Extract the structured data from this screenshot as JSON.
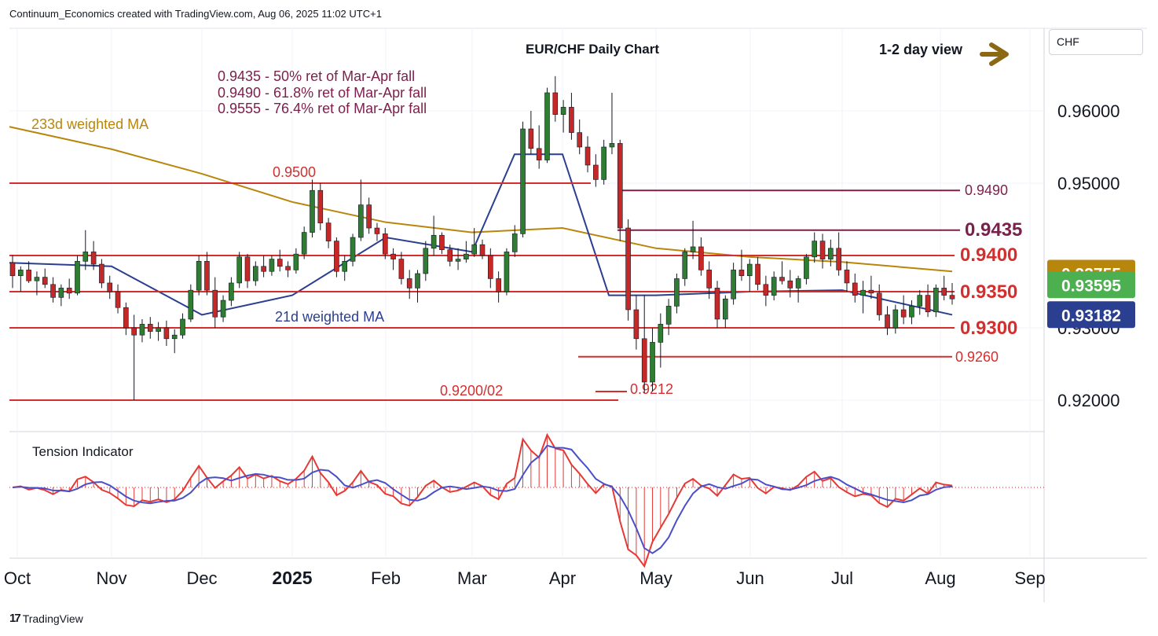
{
  "header": {
    "attribution": "Continuum_Economics created with TradingView.com, Aug 06, 2025 11:02 UTC+1"
  },
  "currency_label": "CHF",
  "footer": {
    "brand": "TradingView",
    "logo_text": "17"
  },
  "colors": {
    "up_candle": "#2e7d32",
    "down_candle": "#c62828",
    "level_line": "#d32f2f",
    "fib_line": "#7b1f4b",
    "ma233": "#b8860b",
    "ma21": "#2a3f8f",
    "tension_fast": "#e53935",
    "tension_slow": "#4a4fc8",
    "arrow": "#8b6914"
  },
  "chart_data": [
    {
      "type": "candlestick",
      "title": "EUR/CHF Daily Chart",
      "view_note": "1-2 day view",
      "view_arrow_icon": "right-arrow-icon",
      "x_tick_labels": [
        "Oct",
        "Nov",
        "Dec",
        "2025",
        "Feb",
        "Mar",
        "Apr",
        "May",
        "Jun",
        "Jul",
        "Aug",
        "Sep"
      ],
      "y_tick_labels": [
        "0.96000",
        "0.95000",
        "0.93000",
        "0.92000"
      ],
      "ylim": [
        0.9185,
        0.9675
      ],
      "grid": true,
      "notes": [
        "0.9435 - 50% ret of Mar-Apr fall",
        "0.9490 - 61.8% ret of Mar-Apr fall",
        "0.9555 - 76.4% ret of Mar-Apr fall"
      ],
      "levels": [
        {
          "value": 0.95,
          "label": "0.9500",
          "style": "resistance"
        },
        {
          "value": 0.949,
          "label": "0.9490",
          "style": "fib"
        },
        {
          "value": 0.9435,
          "label": "0.9435",
          "style": "fib"
        },
        {
          "value": 0.94,
          "label": "0.9400",
          "style": "level"
        },
        {
          "value": 0.935,
          "label": "0.9350",
          "style": "level"
        },
        {
          "value": 0.93,
          "label": "0.9300",
          "style": "level"
        },
        {
          "value": 0.926,
          "label": "0.9260",
          "style": "support"
        },
        {
          "value": 0.9212,
          "label": "0.9212",
          "style": "support"
        },
        {
          "value": 0.92,
          "label": "0.9200/02",
          "style": "support"
        }
      ],
      "price_badges": [
        {
          "value": 0.93755,
          "label": "0.93755",
          "color": "#b8860b"
        },
        {
          "value": 0.93595,
          "label": "0.93595",
          "color": "#4caf50"
        },
        {
          "value": 0.93182,
          "label": "0.93182",
          "color": "#2a3f8f"
        }
      ],
      "series": [
        {
          "name": "233d weighted MA",
          "points": [
            [
              "Oct",
              0.9578
            ],
            [
              "Nov",
              0.9547
            ],
            [
              "Dec",
              0.9513
            ],
            [
              "2025",
              0.9474
            ],
            [
              "Feb",
              0.9446
            ],
            [
              "Mar",
              0.9432
            ],
            [
              "Apr",
              0.9438
            ],
            [
              "May",
              0.941
            ],
            [
              "Jun",
              0.9398
            ],
            [
              "Jul",
              0.9391
            ],
            [
              "Aug",
              0.9378
            ]
          ]
        },
        {
          "name": "21d weighted MA",
          "points": [
            [
              "Oct",
              0.939
            ],
            [
              "Nov",
              0.9385
            ],
            [
              "Dec",
              0.9318
            ],
            [
              "2025",
              0.9345
            ],
            [
              "Feb",
              0.9425
            ],
            [
              "Mar",
              0.9405
            ],
            [
              "Mar 15",
              0.954
            ],
            [
              "Apr",
              0.954
            ],
            [
              "Apr 20",
              0.9345
            ],
            [
              "May",
              0.9345
            ],
            [
              "Jun",
              0.935
            ],
            [
              "Jul",
              0.9352
            ],
            [
              "Aug",
              0.9318
            ]
          ]
        }
      ],
      "candles_ohlc": [
        [
          0.939,
          0.94,
          0.9355,
          0.9372
        ],
        [
          0.9372,
          0.9385,
          0.935,
          0.938
        ],
        [
          0.938,
          0.9392,
          0.9362,
          0.9365
        ],
        [
          0.9365,
          0.9378,
          0.9345,
          0.937
        ],
        [
          0.937,
          0.9382,
          0.9355,
          0.936
        ],
        [
          0.936,
          0.937,
          0.9335,
          0.9342
        ],
        [
          0.9342,
          0.936,
          0.933,
          0.9355
        ],
        [
          0.9355,
          0.9368,
          0.934,
          0.9348
        ],
        [
          0.9348,
          0.94,
          0.9345,
          0.9392
        ],
        [
          0.9392,
          0.9435,
          0.938,
          0.9405
        ],
        [
          0.9405,
          0.942,
          0.938,
          0.9388
        ],
        [
          0.9388,
          0.9395,
          0.9355,
          0.9362
        ],
        [
          0.9362,
          0.9372,
          0.934,
          0.935
        ],
        [
          0.935,
          0.936,
          0.932,
          0.9328
        ],
        [
          0.9328,
          0.9335,
          0.929,
          0.93
        ],
        [
          0.93,
          0.9318,
          0.92,
          0.929
        ],
        [
          0.929,
          0.9312,
          0.928,
          0.9305
        ],
        [
          0.9305,
          0.9315,
          0.9285,
          0.9295
        ],
        [
          0.9295,
          0.9308,
          0.9282,
          0.93
        ],
        [
          0.93,
          0.931,
          0.9275,
          0.9285
        ],
        [
          0.9285,
          0.9298,
          0.9265,
          0.929
        ],
        [
          0.929,
          0.932,
          0.9285,
          0.9312
        ],
        [
          0.9312,
          0.936,
          0.9308,
          0.9352
        ],
        [
          0.9352,
          0.94,
          0.9345,
          0.9392
        ],
        [
          0.9392,
          0.9405,
          0.9345,
          0.9352
        ],
        [
          0.9352,
          0.937,
          0.93,
          0.9315
        ],
        [
          0.9315,
          0.9345,
          0.9308,
          0.9338
        ],
        [
          0.9338,
          0.937,
          0.933,
          0.9362
        ],
        [
          0.9362,
          0.9405,
          0.9355,
          0.9398
        ],
        [
          0.9398,
          0.9402,
          0.9355,
          0.9365
        ],
        [
          0.9365,
          0.9392,
          0.9358,
          0.9385
        ],
        [
          0.9385,
          0.94,
          0.937,
          0.9378
        ],
        [
          0.9378,
          0.94,
          0.9372,
          0.9395
        ],
        [
          0.9395,
          0.9408,
          0.9378,
          0.9385
        ],
        [
          0.9385,
          0.9392,
          0.937,
          0.938
        ],
        [
          0.938,
          0.941,
          0.9375,
          0.9402
        ],
        [
          0.9402,
          0.944,
          0.9395,
          0.9432
        ],
        [
          0.9432,
          0.9505,
          0.9425,
          0.949
        ],
        [
          0.949,
          0.95,
          0.9435,
          0.9445
        ],
        [
          0.9445,
          0.9452,
          0.941,
          0.942
        ],
        [
          0.942,
          0.9425,
          0.937,
          0.9378
        ],
        [
          0.9378,
          0.94,
          0.9365,
          0.9392
        ],
        [
          0.9392,
          0.943,
          0.9385,
          0.9425
        ],
        [
          0.9425,
          0.9505,
          0.942,
          0.947
        ],
        [
          0.947,
          0.948,
          0.943,
          0.9438
        ],
        [
          0.9438,
          0.9445,
          0.942,
          0.943
        ],
        [
          0.943,
          0.9438,
          0.9395,
          0.9402
        ],
        [
          0.9402,
          0.941,
          0.938,
          0.9395
        ],
        [
          0.9395,
          0.9405,
          0.936,
          0.9368
        ],
        [
          0.9368,
          0.938,
          0.934,
          0.9355
        ],
        [
          0.9355,
          0.938,
          0.9335,
          0.9375
        ],
        [
          0.9375,
          0.942,
          0.9365,
          0.941
        ],
        [
          0.941,
          0.9455,
          0.94,
          0.9428
        ],
        [
          0.9428,
          0.9432,
          0.9402,
          0.9408
        ],
        [
          0.9408,
          0.9415,
          0.9385,
          0.9392
        ],
        [
          0.9392,
          0.941,
          0.938,
          0.9395
        ],
        [
          0.9395,
          0.942,
          0.939,
          0.9402
        ],
        [
          0.9402,
          0.9438,
          0.9398,
          0.9415
        ],
        [
          0.9415,
          0.9422,
          0.9395,
          0.94
        ],
        [
          0.94,
          0.941,
          0.9355,
          0.9368
        ],
        [
          0.9368,
          0.9378,
          0.9335,
          0.935
        ],
        [
          0.935,
          0.941,
          0.9345,
          0.9405
        ],
        [
          0.9405,
          0.9442,
          0.9398,
          0.943
        ],
        [
          0.943,
          0.9585,
          0.9425,
          0.9575
        ],
        [
          0.9575,
          0.96,
          0.954,
          0.9548
        ],
        [
          0.9548,
          0.958,
          0.952,
          0.9532
        ],
        [
          0.9532,
          0.9632,
          0.9528,
          0.9625
        ],
        [
          0.9625,
          0.9648,
          0.9585,
          0.9595
        ],
        [
          0.9595,
          0.9615,
          0.957,
          0.9605
        ],
        [
          0.9605,
          0.9625,
          0.956,
          0.957
        ],
        [
          0.957,
          0.9588,
          0.954,
          0.955
        ],
        [
          0.955,
          0.9565,
          0.9515,
          0.9525
        ],
        [
          0.9525,
          0.954,
          0.9495,
          0.9505
        ],
        [
          0.9505,
          0.956,
          0.9498,
          0.955
        ],
        [
          0.955,
          0.9625,
          0.954,
          0.9555
        ],
        [
          0.9555,
          0.956,
          0.942,
          0.9438
        ],
        [
          0.9438,
          0.945,
          0.931,
          0.9325
        ],
        [
          0.9325,
          0.9345,
          0.927,
          0.9285
        ],
        [
          0.9285,
          0.9345,
          0.921,
          0.9225
        ],
        [
          0.9225,
          0.93,
          0.9212,
          0.928
        ],
        [
          0.928,
          0.932,
          0.9245,
          0.9305
        ],
        [
          0.9305,
          0.934,
          0.929,
          0.933
        ],
        [
          0.933,
          0.9375,
          0.932,
          0.9368
        ],
        [
          0.9368,
          0.941,
          0.9358,
          0.9405
        ],
        [
          0.9405,
          0.9448,
          0.9395,
          0.9412
        ],
        [
          0.9412,
          0.9425,
          0.9372,
          0.938
        ],
        [
          0.938,
          0.9392,
          0.934,
          0.9355
        ],
        [
          0.9355,
          0.9365,
          0.93,
          0.9312
        ],
        [
          0.9312,
          0.9345,
          0.93,
          0.934
        ],
        [
          0.934,
          0.939,
          0.9332,
          0.938
        ],
        [
          0.938,
          0.9408,
          0.9365,
          0.9372
        ],
        [
          0.9372,
          0.9395,
          0.935,
          0.9388
        ],
        [
          0.9388,
          0.9398,
          0.9352,
          0.936
        ],
        [
          0.936,
          0.9372,
          0.933,
          0.9345
        ],
        [
          0.9345,
          0.9378,
          0.9338,
          0.937
        ],
        [
          0.937,
          0.9392,
          0.936,
          0.9365
        ],
        [
          0.9365,
          0.938,
          0.9342,
          0.9355
        ],
        [
          0.9355,
          0.9372,
          0.9335,
          0.9368
        ],
        [
          0.9368,
          0.9402,
          0.936,
          0.9398
        ],
        [
          0.9398,
          0.9432,
          0.939,
          0.942
        ],
        [
          0.942,
          0.943,
          0.9382,
          0.9395
        ],
        [
          0.9395,
          0.9422,
          0.9385,
          0.941
        ],
        [
          0.941,
          0.9432,
          0.9372,
          0.938
        ],
        [
          0.938,
          0.9392,
          0.935,
          0.9362
        ],
        [
          0.9362,
          0.9375,
          0.9335,
          0.9345
        ],
        [
          0.9345,
          0.9365,
          0.932,
          0.9352
        ],
        [
          0.9352,
          0.9372,
          0.934,
          0.9348
        ],
        [
          0.9348,
          0.936,
          0.931,
          0.9318
        ],
        [
          0.9318,
          0.933,
          0.929,
          0.93
        ],
        [
          0.93,
          0.9332,
          0.9292,
          0.9325
        ],
        [
          0.9325,
          0.9345,
          0.9305,
          0.9315
        ],
        [
          0.9315,
          0.9338,
          0.9305,
          0.933
        ],
        [
          0.933,
          0.9352,
          0.9318,
          0.9345
        ],
        [
          0.9345,
          0.936,
          0.9315,
          0.9322
        ],
        [
          0.9322,
          0.936,
          0.9315,
          0.9355
        ],
        [
          0.9355,
          0.9372,
          0.9338,
          0.9345
        ],
        [
          0.9345,
          0.9362,
          0.9332,
          0.934
        ]
      ]
    },
    {
      "type": "line",
      "title": "Tension Indicator",
      "series_style": "oscillator with histogram",
      "zero_line": true
    }
  ]
}
